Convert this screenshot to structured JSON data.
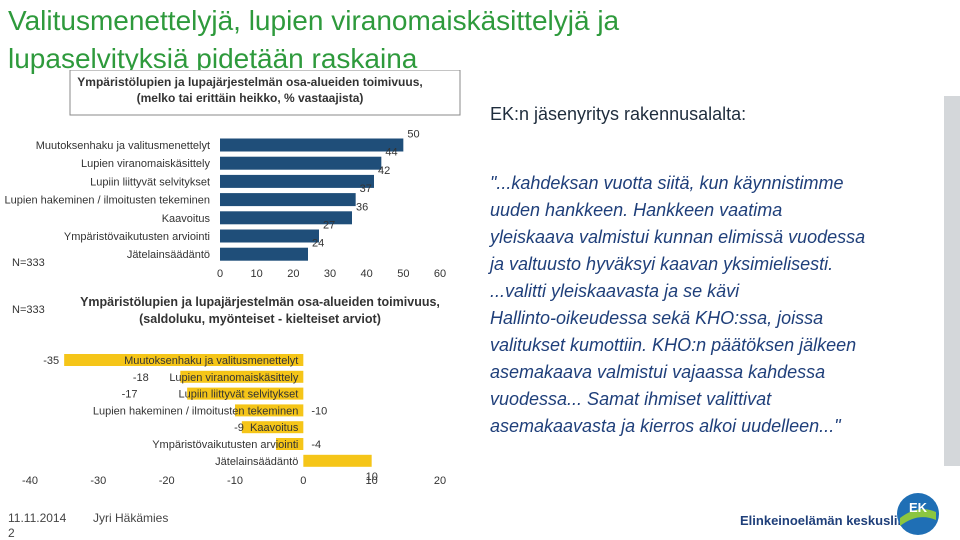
{
  "slide": {
    "title_line1": "Valitusmenettelyjä, lupien viranomaiskäsittelyjä ja",
    "title_line2": "lupaselvityksiä pidetään raskaina",
    "quote_header": "EK:n jäsenyritys rakennusalalta:",
    "quote_lines": [
      "\"...kahdeksan vuotta siitä, kun käynnistimme",
      "uuden hankkeen. Hankkeen vaatima",
      "yleiskaava valmistui kunnan elimissä vuodessa",
      "ja valtuusto hyväksyi kaavan yksimielisesti.",
      "...valitti yleiskaavasta ja se kävi",
      "Hallinto-oikeudessa sekä KHO:ssa, joissa",
      "valitukset kumottiin. KHO:n päätöksen jälkeen",
      "asemakaava valmistui vajaassa kahdessa",
      "vuodessa... Samat ihmiset valittivat",
      "asemakaavasta ja kierros alkoi uudelleen...\""
    ],
    "date": "11.11.2014",
    "page": "2",
    "author": "Jyri Häkämies",
    "logo_text": "Elinkeinoelämän keskusliitto",
    "logo_mark": "EK"
  },
  "colors": {
    "title_green": "#2e9a3c",
    "bar_blue": "#1f4e79",
    "bar_yellow": "#f5c518",
    "quote_blue": "#1f3f7a"
  },
  "chart_data": [
    {
      "type": "bar",
      "orientation": "horizontal",
      "title": "Ympäristölupien ja lupajärjestelmän osa-alueiden toimivuus,\n(melko tai erittäin heikko, % vastaajista)",
      "n_label": "N=333",
      "categories": [
        "Muutoksenhaku ja valitusmenettelyt",
        "Lupien viranomaiskäsittely",
        "Lupiin liittyvät selvitykset",
        "Lupien hakeminen / ilmoitusten tekeminen",
        "Kaavoitus",
        "Ympäristövaikutusten arviointi",
        "Jätelainsäädäntö"
      ],
      "values": [
        50,
        44,
        42,
        37,
        36,
        27,
        24
      ],
      "xlim": [
        0,
        60
      ],
      "xticks": [
        "0",
        "10",
        "20",
        "30",
        "40",
        "50",
        "60"
      ],
      "grid": false
    },
    {
      "type": "bar",
      "orientation": "horizontal",
      "title": "Ympäristölupien ja lupajärjestelmän osa-alueiden toimivuus,\n(saldoluku, myönteiset - kielteiset arviot)",
      "n_label": "N=333",
      "categories": [
        "Muutoksenhaku ja valitusmenettelyt",
        "Lupien viranomaiskäsittely",
        "Lupiin liittyvät selvitykset",
        "Lupien hakeminen / ilmoitusten tekeminen",
        "Kaavoitus",
        "Ympäristövaikutusten arviointi",
        "Jätelainsäädäntö"
      ],
      "values": [
        -35,
        -18,
        -17,
        -10,
        -9,
        -4,
        10
      ],
      "value_labels": [
        "-35",
        "-18",
        "-17",
        "-10",
        "-9",
        "-4",
        "10"
      ],
      "xlim": [
        -40,
        20
      ],
      "xticks": [
        "-40",
        "-30",
        "-20",
        "-10",
        "0",
        "10",
        "20"
      ],
      "grid": false
    }
  ]
}
